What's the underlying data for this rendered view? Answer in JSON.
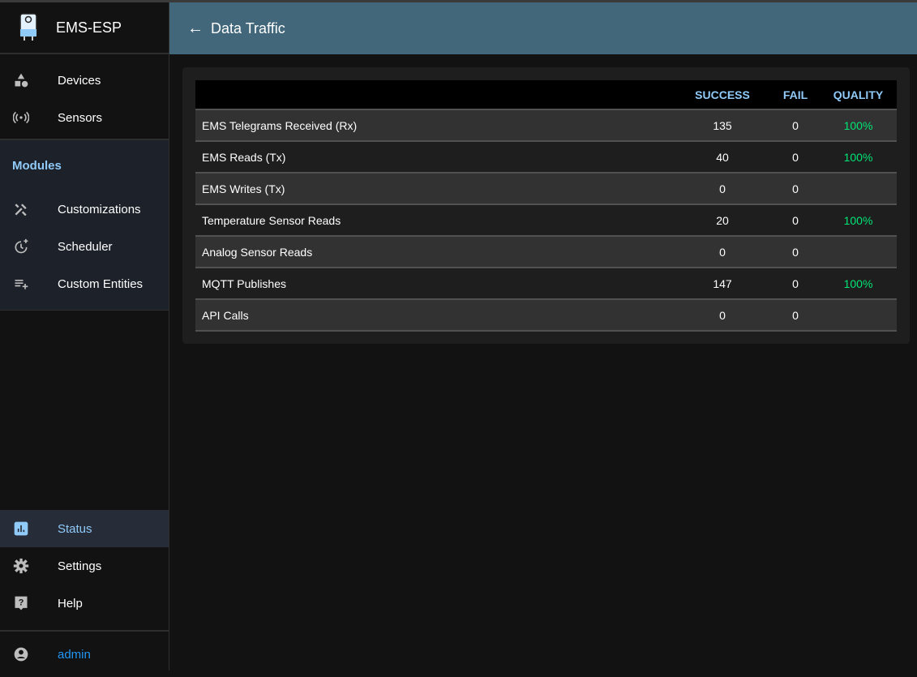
{
  "app": {
    "name": "EMS-ESP"
  },
  "header": {
    "title": "Data Traffic"
  },
  "sidebar": {
    "items": [
      {
        "label": "Devices",
        "icon": "devices-icon"
      },
      {
        "label": "Sensors",
        "icon": "sensors-icon"
      }
    ],
    "modules_label": "Modules",
    "modules": [
      {
        "label": "Customizations",
        "icon": "tools-icon"
      },
      {
        "label": "Scheduler",
        "icon": "scheduler-icon"
      },
      {
        "label": "Custom Entities",
        "icon": "playlist-add-icon"
      }
    ],
    "bottom": [
      {
        "label": "Status",
        "icon": "status-icon",
        "active": true
      },
      {
        "label": "Settings",
        "icon": "gear-icon"
      },
      {
        "label": "Help",
        "icon": "help-icon"
      }
    ],
    "user": "admin"
  },
  "table": {
    "columns": [
      "",
      "SUCCESS",
      "FAIL",
      "QUALITY"
    ],
    "rows": [
      {
        "name": "EMS Telegrams Received (Rx)",
        "success": "135",
        "fail": "0",
        "quality": "100%"
      },
      {
        "name": "EMS Reads (Tx)",
        "success": "40",
        "fail": "0",
        "quality": "100%"
      },
      {
        "name": "EMS Writes (Tx)",
        "success": "0",
        "fail": "0",
        "quality": ""
      },
      {
        "name": "Temperature Sensor Reads",
        "success": "20",
        "fail": "0",
        "quality": "100%"
      },
      {
        "name": "Analog Sensor Reads",
        "success": "0",
        "fail": "0",
        "quality": ""
      },
      {
        "name": "MQTT Publishes",
        "success": "147",
        "fail": "0",
        "quality": "100%"
      },
      {
        "name": "API Calls",
        "success": "0",
        "fail": "0",
        "quality": ""
      }
    ]
  },
  "colors": {
    "header": "#42677a",
    "accent": "#90caf9",
    "quality": "#00e676",
    "user": "#2196f3"
  }
}
